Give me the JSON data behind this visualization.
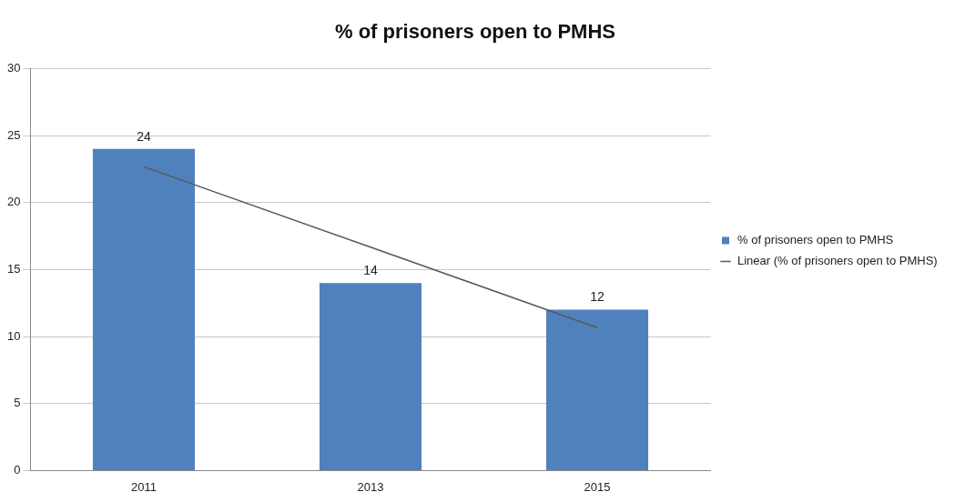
{
  "chart_data": {
    "type": "bar",
    "title": "% of prisoners open to PMHS",
    "categories": [
      "2011",
      "2013",
      "2015"
    ],
    "series": [
      {
        "name": "% of prisoners open to PMHS",
        "color": "#4f81bd",
        "values": [
          24,
          14,
          12
        ],
        "value_labels": [
          "24",
          "14",
          "12"
        ]
      },
      {
        "name": "Linear (% of prisoners open to PMHS)",
        "type": "line",
        "color": "#595959",
        "values": [
          22.67,
          16.67,
          10.67
        ],
        "marker": "none"
      }
    ],
    "ylim": [
      0,
      30
    ],
    "yticks": [
      0,
      5,
      10,
      15,
      20,
      25,
      30
    ],
    "grid": "y",
    "legend": "right"
  }
}
